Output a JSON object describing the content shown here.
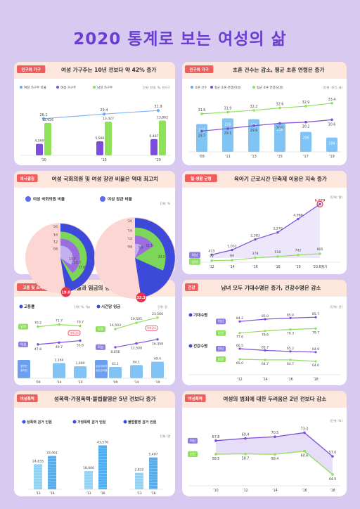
{
  "title": "2020 통계로 보는 여성의 삶",
  "panels": [
    {
      "category": "인구와 가구",
      "title": "여성 가구주는 10년 전보다 약 42% 증가"
    },
    {
      "category": "인구와 가구",
      "title": "초혼 건수는 감소, 평균 초혼 연령은 증가"
    },
    {
      "category": "의사결정",
      "title": "여성 국회의원 및 여성 장관 비율은 역대 최고치"
    },
    {
      "category": "일·생활 균형",
      "title": "육아기 근로시간 단축제 이용은 지속 증가"
    },
    {
      "category": "고용 및 소득",
      "title": "고용률과 임금의 성별 격차는 지속 감소"
    },
    {
      "category": "건강",
      "title": "남녀 모두 기대수명은 증가, 건강수명은 감소"
    },
    {
      "category": "여성폭력",
      "title": "성폭력·가정폭력·불법촬영은 5년 전보다 증가"
    },
    {
      "category": "여성폭력",
      "title": "여성의 범죄에 대한 두려움은 2년 전보다 감소"
    }
  ],
  "chart_data": [
    {
      "type": "bar",
      "title": "여성 가구주는 10년 전보다 약 42% 증가",
      "unit": "천명, %, 천가구",
      "categories": [
        "'10",
        "'15",
        "'20"
      ],
      "legend": [
        "여성 가구주 비율",
        "여성 가구주",
        "남성 가구주"
      ],
      "series": [
        {
          "name": "여성 가구주 비율",
          "values": [
            26.1,
            29.4,
            31.9
          ],
          "labels": [
            "26.1",
            "29.4",
            "31.9"
          ]
        },
        {
          "name": "여성 가구주",
          "values": [
            4569,
            5586,
            6487
          ],
          "labels": [
            "4,569",
            "5,586",
            "6,487"
          ]
        },
        {
          "name": "남성 가구주",
          "values": [
            12926,
            13427,
            13862
          ],
          "labels": [
            "12,926",
            "13,427",
            "13,862"
          ]
        }
      ]
    },
    {
      "type": "bar",
      "title": "초혼 건수는 감소, 평균 초혼 연령은 증가",
      "unit": "천건, 세",
      "categories": [
        "'09",
        "'11",
        "'13",
        "'15",
        "'17",
        "'19"
      ],
      "legend": [
        "초혼 건수",
        "평균 초혼 연령(여성)",
        "평균 초혼 연령(남성)"
      ],
      "series": [
        {
          "name": "초혼 건수",
          "values": [
            237,
            259,
            256,
            238,
            206,
            184
          ]
        },
        {
          "name": "평균 초혼 연령(여성)",
          "values": [
            28.7,
            29.1,
            29.6,
            30.0,
            30.2,
            30.6
          ]
        },
        {
          "name": "평균 초혼 연령(남성)",
          "values": [
            31.6,
            31.9,
            32.2,
            32.6,
            32.9,
            33.4
          ]
        }
      ]
    },
    {
      "type": "pie",
      "title": "여성 국회의원 및 여성 장관 비율은 역대 최고치",
      "unit": "단위: %",
      "charts": [
        {
          "name": "여성 국회의원 비율",
          "categories": [
            "'08",
            "'12",
            "'16",
            "'20"
          ],
          "values": [
            13.7,
            15.7,
            17.0,
            19.0
          ]
        },
        {
          "name": "여성 장관 비율",
          "categories": [
            "'08",
            "'12",
            "'16",
            "'20"
          ],
          "values": [
            5.0,
            11.1,
            22.2,
            33.3
          ]
        }
      ]
    },
    {
      "type": "line",
      "title": "육아기 근로시간 단축제 이용은 지속 증가",
      "unit": "단위: 명",
      "categories": [
        "'12",
        "'14",
        "'16",
        "'18",
        "'19",
        "'20.6월기"
      ],
      "series": [
        {
          "name": "여성",
          "values": [
            415,
            1032,
            2383,
            3270,
            4988,
            6879
          ],
          "labels": [
            "415",
            "1,032",
            "2,383",
            "3,270",
            "4,988",
            "6,879"
          ]
        },
        {
          "name": "남성",
          "values": [
            22,
            84,
            378,
            550,
            742,
            905
          ],
          "labels": [
            "22",
            "84",
            "378",
            "550",
            "742",
            "905"
          ]
        }
      ]
    },
    {
      "type": "line",
      "title": "고용률과 임금의 성별 격차는 지속 감소",
      "charts": [
        {
          "name": "고용률",
          "unit": "단위: %, %p",
          "categories": [
            "'09",
            "'14",
            "'19"
          ],
          "series": [
            {
              "name": "남성",
              "values": [
                70.2,
                71.7,
                70.7
              ]
            },
            {
              "name": "여성",
              "values": [
                47.8,
                49.7,
                51.6
              ]
            },
            {
              "name": "성별 격차",
              "values": [
                22.4,
                22.0,
                19.1
              ]
            }
          ],
          "bars_label": "경력단절여성",
          "bars": [
            null,
            2164,
            1699
          ],
          "bar_labels": [
            "",
            "2,164",
            "1,699"
          ],
          "gap_label": "격차감소"
        },
        {
          "name": "시간당 임금",
          "unit": "단위: 원",
          "categories": [
            "'09",
            "'14",
            "'19"
          ],
          "series": [
            {
              "name": "남성",
              "values": [
                14503,
                19505,
                23566
              ],
              "labels": [
                "14,503",
                "19,505",
                "23,566"
              ]
            },
            {
              "name": "여성",
              "values": [
                8856,
                12500,
                16358
              ],
              "labels": [
                "8,856",
                "12,500",
                "16,358"
              ]
            }
          ],
          "bars_label": "남성대비여성임금비율",
          "bars": [
            61.1,
            64.1,
            69.4
          ],
          "gap_label": "격차감소"
        }
      ]
    },
    {
      "type": "line",
      "title": "남녀 모두 기대수명은 증가, 건강수명은 감소",
      "unit": "단위: 년",
      "charts": [
        {
          "name": "기대수명",
          "categories": [
            "'12",
            "'14",
            "'16",
            "'18"
          ],
          "series": [
            {
              "name": "여성",
              "values": [
                84.2,
                85.0,
                85.4,
                85.7
              ]
            },
            {
              "name": "남성",
              "values": [
                77.6,
                78.6,
                79.3,
                79.7
              ]
            }
          ]
        },
        {
          "name": "건강수명",
          "categories": [
            "'12",
            "'14",
            "'16",
            "'18"
          ],
          "series": [
            {
              "name": "여성",
              "values": [
                66.5,
                65.7,
                65.2,
                64.9
              ]
            },
            {
              "name": "남성",
              "values": [
                65.0,
                64.7,
                64.7,
                64.0
              ]
            }
          ]
        }
      ]
    },
    {
      "type": "bar",
      "title": "성폭력·가정폭력·불법촬영은 5년 전보다 증가",
      "unit": "단위: 명",
      "charts": [
        {
          "name": "성폭력 검거 인원",
          "categories": [
            "'13",
            "'18"
          ],
          "values": [
            24835,
            33061
          ],
          "labels": [
            "24,835",
            "33,061"
          ]
        },
        {
          "name": "가정폭력 검거 인원",
          "categories": [
            "'13",
            "'18"
          ],
          "values": [
            18000,
            43576
          ],
          "labels": [
            "18,000",
            "43,576"
          ]
        },
        {
          "name": "불법촬영 검거 인원",
          "categories": [
            "'13",
            "'18"
          ],
          "values": [
            2832,
            5497
          ],
          "labels": [
            "2,832",
            "5,497"
          ]
        }
      ]
    },
    {
      "type": "line",
      "title": "여성의 범죄에 대한 두려움은 2년 전보다 감소",
      "unit": "단위: %",
      "categories": [
        "'10",
        "'12",
        "'14",
        "'16",
        "'18"
      ],
      "series": [
        {
          "name": "여성",
          "values": [
            67.8,
            69.4,
            70.5,
            73.3,
            57.0
          ]
        },
        {
          "name": "남성",
          "values": [
            58.5,
            58.7,
            58.4,
            60.6,
            44.5
          ]
        }
      ]
    }
  ]
}
